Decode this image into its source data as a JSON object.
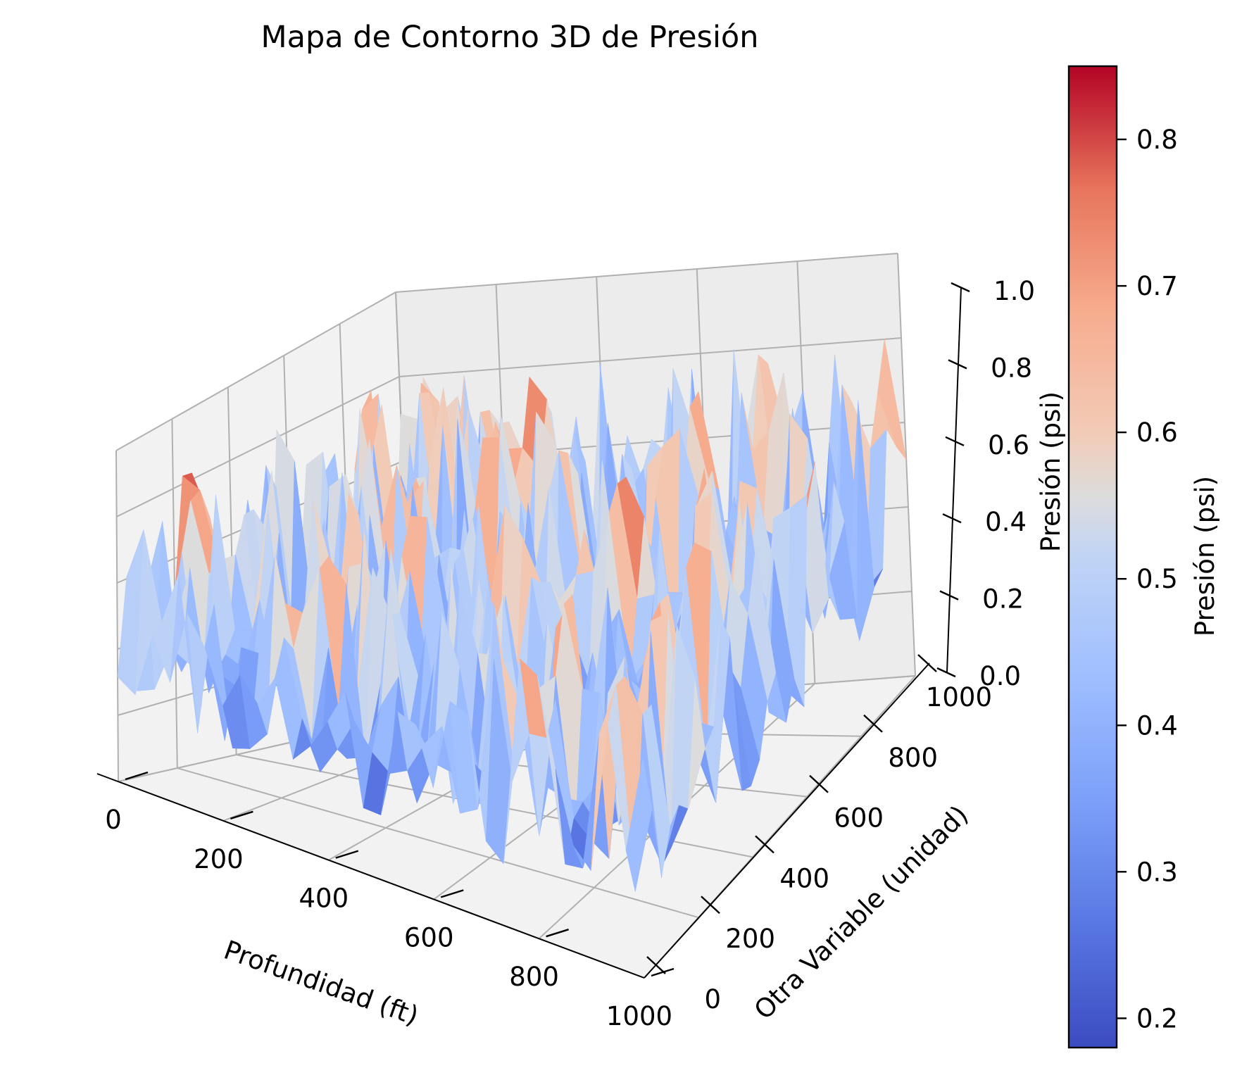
{
  "chart_data": {
    "type": "surface3d",
    "title": "Mapa de Contorno 3D de Presión",
    "xlabel": "Profundidad (ft)",
    "ylabel": "Otra Variable (unidad)",
    "zlabel": "Presión (psi)",
    "colorbar_label": "Presión (psi)",
    "colormap": "coolwarm",
    "xlim": [
      0,
      1000
    ],
    "ylim": [
      0,
      1000
    ],
    "zlim": [
      0,
      1
    ],
    "color_range": [
      0.18,
      0.85
    ],
    "x_ticks": [
      "0",
      "200",
      "400",
      "600",
      "800",
      "1000"
    ],
    "y_ticks": [
      "0",
      "200",
      "400",
      "600",
      "800",
      "1000"
    ],
    "z_ticks": [
      "0.0",
      "0.2",
      "0.4",
      "0.6",
      "0.8",
      "1.0"
    ],
    "colorbar_ticks": [
      "0.2",
      "0.3",
      "0.4",
      "0.5",
      "0.6",
      "0.7",
      "0.8"
    ],
    "colors": {
      "low": "#3b4cc0",
      "mid": "#dddddd",
      "high": "#b40426"
    },
    "grid": true
  }
}
